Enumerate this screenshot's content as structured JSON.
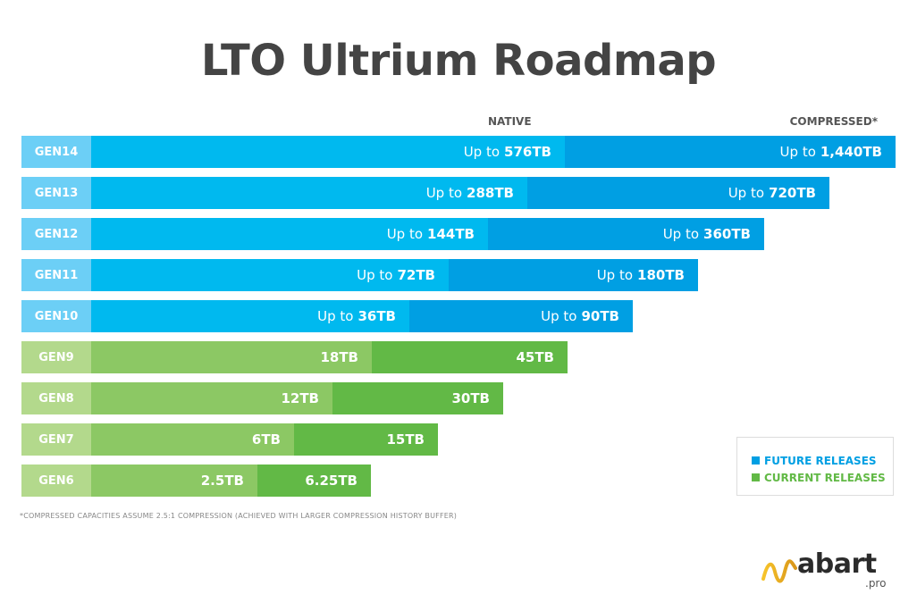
{
  "chart_data": {
    "type": "bar",
    "title": "LTO Ultrium Roadmap",
    "column_headers": {
      "native": "NATIVE",
      "compressed": "COMPRESSED*"
    },
    "x_max": 1440,
    "categories": [
      "GEN14",
      "GEN13",
      "GEN12",
      "GEN11",
      "GEN10",
      "GEN9",
      "GEN8",
      "GEN7",
      "GEN6"
    ],
    "series": [
      {
        "name": "NATIVE",
        "values": [
          576,
          288,
          144,
          72,
          36,
          18,
          12,
          6,
          2.5
        ],
        "prefix": [
          "Up to",
          "Up to",
          "Up to",
          "Up to",
          "Up to",
          "",
          "",
          "",
          ""
        ],
        "labels": [
          "576TB",
          "288TB",
          "144TB",
          "72TB",
          "36TB",
          "18TB",
          "12TB",
          "6TB",
          "2.5TB"
        ]
      },
      {
        "name": "COMPRESSED*",
        "values": [
          1440,
          720,
          360,
          180,
          90,
          45,
          30,
          15,
          6.25
        ],
        "prefix": [
          "Up to",
          "Up to",
          "Up to",
          "Up to",
          "Up to",
          "",
          "",
          "",
          ""
        ],
        "labels": [
          "1,440TB",
          "720TB",
          "360TB",
          "180TB",
          "90TB",
          "45TB",
          "30TB",
          "15TB",
          "6.25TB"
        ]
      }
    ],
    "release_status": [
      "future",
      "future",
      "future",
      "future",
      "future",
      "current",
      "current",
      "current",
      "current"
    ],
    "legend": [
      {
        "key": "future",
        "label": "FUTURE RELEASES"
      },
      {
        "key": "current",
        "label": "CURRENT RELEASES"
      }
    ],
    "legend_position": "bottom-right",
    "colors": {
      "future_label": "#6ccff6",
      "future_native": "#00b9ef",
      "future_compressed": "#009fe3",
      "current_label": "#b3d98c",
      "current_native": "#8cc864",
      "current_compressed": "#62b946",
      "legend_future": "#009fe3",
      "legend_current": "#62b946"
    },
    "footnote": "*COMPRESSED CAPACITIES ASSUME 2.5:1 COMPRESSION (ACHIEVED WITH LARGER COMPRESSION HISTORY BUFFER)"
  },
  "logo": {
    "word": "abart",
    "suffix": ".pro"
  }
}
